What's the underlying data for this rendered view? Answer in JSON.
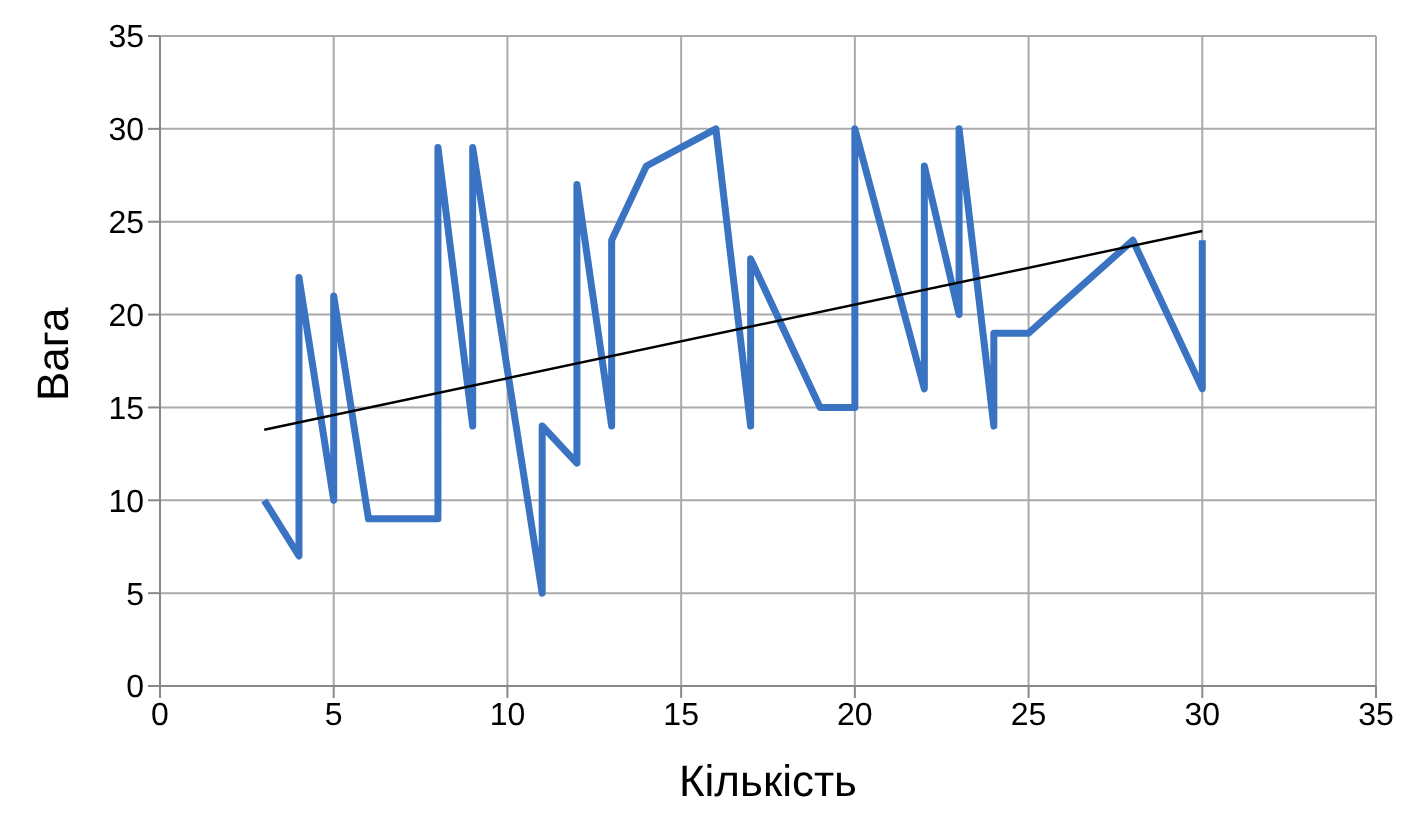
{
  "chart_data": {
    "type": "line",
    "xlabel": "Кількість",
    "ylabel": "Вага",
    "xlim": [
      0,
      35
    ],
    "xticks": [
      0,
      5,
      10,
      15,
      20,
      25,
      30,
      35
    ],
    "ylim": [
      0,
      35
    ],
    "yticks": [
      0,
      5,
      10,
      15,
      20,
      25,
      30,
      35
    ],
    "grid": true,
    "marker": "none",
    "line_style": "solid",
    "series": [
      {
        "color": "#3a73c2",
        "x": [
          3,
          4,
          4,
          5,
          5,
          6,
          8,
          8,
          9,
          9,
          11,
          11,
          12,
          12,
          13,
          13,
          14,
          16,
          17,
          17,
          19,
          20,
          20,
          22,
          22,
          23,
          23,
          24,
          24,
          25,
          28,
          30,
          30
        ],
        "values": [
          10,
          7,
          22,
          10,
          21,
          9,
          9,
          29,
          14,
          29,
          5,
          14,
          12,
          27,
          14,
          24,
          28,
          30,
          14,
          23,
          15,
          15,
          30,
          16,
          28,
          20,
          30,
          14,
          19,
          19,
          24,
          16,
          24
        ]
      },
      {
        "type": "line",
        "color": "#000000",
        "x": [
          3,
          30
        ],
        "values": [
          13.8,
          24.5
        ]
      }
    ]
  }
}
